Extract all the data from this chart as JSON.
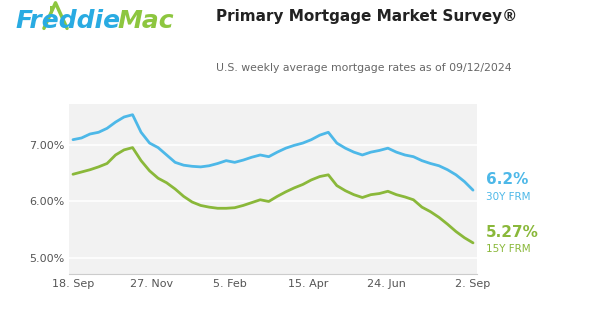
{
  "title": "Primary Mortgage Market Survey®",
  "subtitle": "U.S. weekly average mortgage rates as of 09/12/2024",
  "freddie_blue": "#29ABE2",
  "freddie_green": "#8DC63F",
  "line_blue": "#4DB8E8",
  "line_green": "#8AB83A",
  "bg_color": "#FFFFFF",
  "plot_bg": "#F2F2F2",
  "label_30y": "6.2%",
  "label_30y_sub": "30Y FRM",
  "label_15y": "5.27%",
  "label_15y_sub": "15Y FRM",
  "yticks": [
    5.0,
    6.0,
    7.0
  ],
  "ylim": [
    4.72,
    7.72
  ],
  "xtick_labels": [
    "18. Sep",
    "27. Nov",
    "5. Feb",
    "15. Apr",
    "24. Jun",
    "2. Sep"
  ],
  "xtick_positions": [
    0.0,
    0.196,
    0.392,
    0.588,
    0.784,
    1.0
  ],
  "30y_data": [
    7.09,
    7.12,
    7.19,
    7.22,
    7.29,
    7.4,
    7.49,
    7.53,
    7.22,
    7.03,
    6.95,
    6.82,
    6.69,
    6.64,
    6.62,
    6.61,
    6.63,
    6.67,
    6.72,
    6.69,
    6.73,
    6.78,
    6.82,
    6.79,
    6.87,
    6.94,
    6.99,
    7.03,
    7.09,
    7.17,
    7.22,
    7.03,
    6.94,
    6.87,
    6.82,
    6.87,
    6.9,
    6.94,
    6.87,
    6.82,
    6.79,
    6.72,
    6.67,
    6.63,
    6.56,
    6.47,
    6.35,
    6.2
  ],
  "15y_data": [
    6.48,
    6.52,
    6.56,
    6.61,
    6.67,
    6.82,
    6.91,
    6.95,
    6.72,
    6.54,
    6.41,
    6.33,
    6.22,
    6.09,
    5.99,
    5.93,
    5.9,
    5.88,
    5.88,
    5.89,
    5.93,
    5.98,
    6.03,
    6.0,
    6.09,
    6.17,
    6.24,
    6.3,
    6.38,
    6.44,
    6.47,
    6.28,
    6.19,
    6.12,
    6.07,
    6.12,
    6.14,
    6.18,
    6.12,
    6.08,
    6.03,
    5.9,
    5.82,
    5.72,
    5.6,
    5.47,
    5.36,
    5.27
  ],
  "logo_freddie_color": "#29ABE2",
  "logo_mac_color": "#8DC63F",
  "logo_house_color": "#8DC63F"
}
